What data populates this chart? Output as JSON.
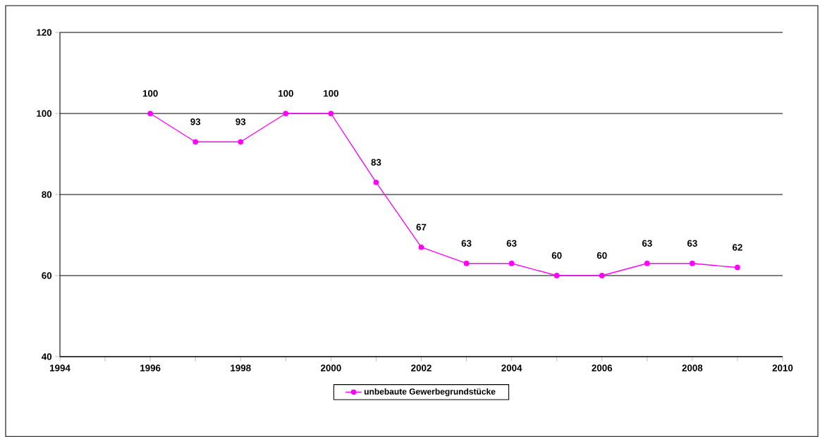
{
  "chart_data": {
    "type": "line",
    "x": [
      1996,
      1997,
      1998,
      1999,
      2000,
      2001,
      2002,
      2003,
      2004,
      2005,
      2006,
      2007,
      2008,
      2009
    ],
    "series": [
      {
        "name": "unbebaute Gewerbegrundstücke",
        "color": "#ff00ff",
        "values": [
          100,
          93,
          93,
          100,
          100,
          83,
          67,
          63,
          63,
          60,
          60,
          63,
          63,
          62
        ]
      }
    ],
    "xlim": [
      1994,
      2010
    ],
    "xticks": [
      1994,
      {
        "value": 1995,
        "label": null
      },
      1996,
      {
        "value": 1997,
        "label": null
      },
      1998,
      {
        "value": 1999,
        "label": null
      },
      2000,
      {
        "value": 2001,
        "label": null
      },
      2002,
      {
        "value": 2003,
        "label": null
      },
      2004,
      {
        "value": 2005,
        "label": null
      },
      2006,
      {
        "value": 2007,
        "label": null
      },
      2008,
      {
        "value": 2009,
        "label": null
      },
      2010
    ],
    "ylim": [
      40,
      120
    ],
    "yticks": [
      40,
      60,
      80,
      100,
      120
    ],
    "grid": "y",
    "legend": "bottom",
    "marker": "circle",
    "line_style": "solid",
    "data_labels": true
  }
}
